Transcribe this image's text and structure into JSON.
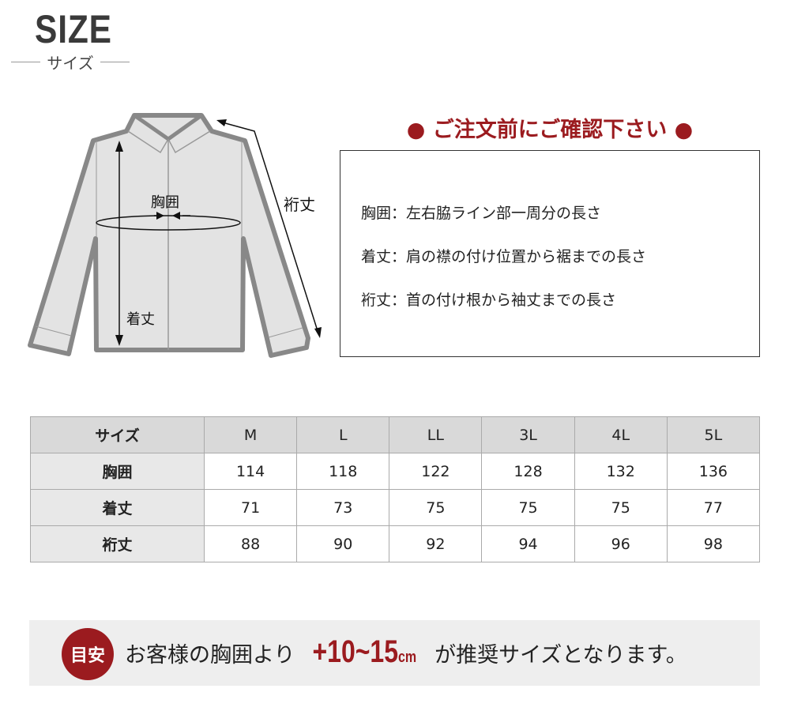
{
  "header": {
    "title": "SIZE",
    "subtitle": "サイズ"
  },
  "diagram": {
    "labels": {
      "chest": "胸囲",
      "length": "着丈",
      "sleeve": "裄丈"
    },
    "outline_color": "#888888",
    "fill_color": "#e3e3e3"
  },
  "notice": {
    "title": "● ご注文前にご確認下さい ●",
    "definitions": [
      "胸囲：左右脇ライン部一周分の長さ",
      "着丈：肩の襟の付け位置から裾までの長さ",
      "裄丈：首の付け根から袖丈までの長さ"
    ]
  },
  "size_table": {
    "headers": [
      "サイズ",
      "M",
      "L",
      "LL",
      "3L",
      "4L",
      "5L"
    ],
    "rows": [
      {
        "label": "胸囲",
        "values": [
          "114",
          "118",
          "122",
          "128",
          "132",
          "136"
        ]
      },
      {
        "label": "着丈",
        "values": [
          "71",
          "73",
          "75",
          "75",
          "75",
          "77"
        ]
      },
      {
        "label": "裄丈",
        "values": [
          "88",
          "90",
          "92",
          "94",
          "96",
          "98"
        ]
      }
    ]
  },
  "guide": {
    "badge": "目安",
    "prefix": "お客様の胸囲より",
    "highlight": "+10~15",
    "unit": "cm",
    "suffix": "が推奨サイズとなります。"
  },
  "colors": {
    "accent": "#9b1b1f"
  }
}
